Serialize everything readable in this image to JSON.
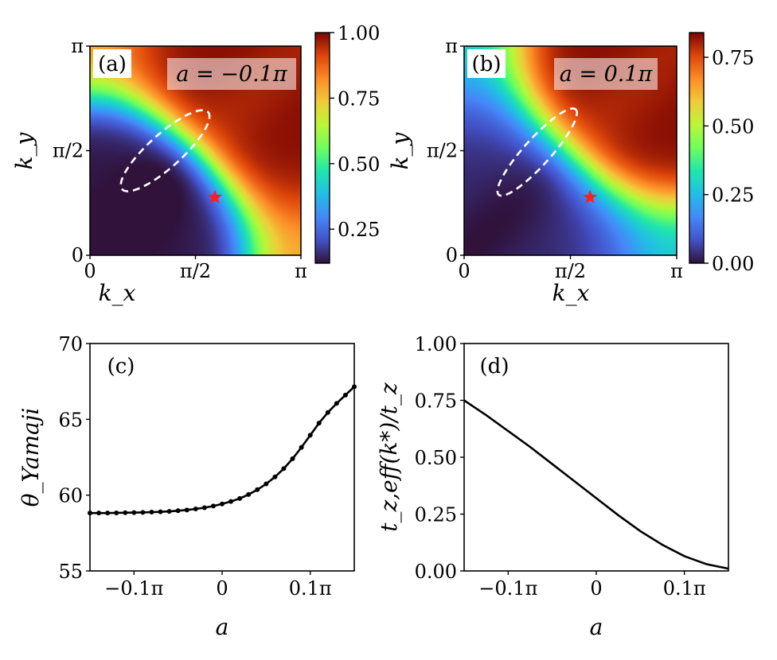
{
  "chart_data": [
    {
      "panel": "(a)",
      "type": "heatmap",
      "annotation": "a = −0.1π",
      "param_a": -0.1,
      "xlabel": "k_x",
      "ylabel": "k_y",
      "x_range": [
        0,
        3.14159
      ],
      "y_range": [
        0,
        3.14159
      ],
      "x_ticks": [
        {
          "value": 0,
          "label": "0"
        },
        {
          "value": 1.5708,
          "label": "π/2"
        },
        {
          "value": 3.14159,
          "label": "π"
        }
      ],
      "y_ticks": [
        {
          "value": 0,
          "label": "0"
        },
        {
          "value": 1.5708,
          "label": "π/2"
        },
        {
          "value": 3.14159,
          "label": "π"
        }
      ],
      "colorbar": {
        "min": 0.12,
        "max": 1.0,
        "ticks": [
          {
            "value": 0.25,
            "label": "0.25"
          },
          {
            "value": 0.5,
            "label": "0.50"
          },
          {
            "value": 0.75,
            "label": "0.75"
          },
          {
            "value": 1.0,
            "label": "1.00"
          }
        ]
      },
      "model": {
        "mu": 1.15,
        "base_low": 0.12,
        "base_high": 1.0,
        "spread": 0.22
      },
      "fermi_pocket": {
        "cx": 1.12,
        "cy": 1.57,
        "rx": 0.86,
        "ry": 0.25,
        "angle_deg": -42
      },
      "marker": {
        "kx": 1.86,
        "ky": 0.87
      }
    },
    {
      "panel": "(b)",
      "type": "heatmap",
      "annotation": "a = 0.1π",
      "param_a": 0.1,
      "xlabel": "k_x",
      "ylabel": "k_y",
      "x_range": [
        0,
        3.14159
      ],
      "y_range": [
        0,
        3.14159
      ],
      "x_ticks": [
        {
          "value": 0,
          "label": "0"
        },
        {
          "value": 1.5708,
          "label": "π/2"
        },
        {
          "value": 3.14159,
          "label": "π"
        }
      ],
      "y_ticks": [
        {
          "value": 0,
          "label": "0"
        },
        {
          "value": 1.5708,
          "label": "π/2"
        },
        {
          "value": 3.14159,
          "label": "π"
        }
      ],
      "colorbar": {
        "min": 0.0,
        "max": 0.84,
        "ticks": [
          {
            "value": 0.0,
            "label": "0.00"
          },
          {
            "value": 0.25,
            "label": "0.25"
          },
          {
            "value": 0.5,
            "label": "0.50"
          },
          {
            "value": 0.75,
            "label": "0.75"
          }
        ]
      },
      "model": {
        "mu": 1.2,
        "base_low": 0.02,
        "base_high": 0.84,
        "spread": 0.26
      },
      "fermi_pocket": {
        "cx": 1.08,
        "cy": 1.55,
        "rx": 0.85,
        "ry": 0.2,
        "angle_deg": -48
      },
      "marker": {
        "kx": 1.86,
        "ky": 0.87
      }
    },
    {
      "panel": "(c)",
      "type": "line",
      "xlabel": "a",
      "ylabel": "θ_Yamaji",
      "x_range": [
        -0.15,
        0.15
      ],
      "ylim": [
        55,
        70
      ],
      "x_ticks": [
        {
          "value": -0.1,
          "label": "−0.1π"
        },
        {
          "value": 0,
          "label": "0"
        },
        {
          "value": 0.1,
          "label": "0.1π"
        }
      ],
      "y_ticks": [
        {
          "value": 55,
          "label": "55"
        },
        {
          "value": 60,
          "label": "60"
        },
        {
          "value": 65,
          "label": "65"
        },
        {
          "value": 70,
          "label": "70"
        }
      ],
      "markers": true,
      "x": [
        -0.15,
        -0.14,
        -0.13,
        -0.12,
        -0.11,
        -0.1,
        -0.09,
        -0.08,
        -0.07,
        -0.06,
        -0.05,
        -0.04,
        -0.03,
        -0.02,
        -0.01,
        0.0,
        0.01,
        0.02,
        0.03,
        0.04,
        0.05,
        0.06,
        0.07,
        0.08,
        0.09,
        0.1,
        0.11,
        0.12,
        0.13,
        0.14,
        0.15
      ],
      "values": [
        58.82,
        58.82,
        58.82,
        58.83,
        58.84,
        58.85,
        58.86,
        58.88,
        58.9,
        58.93,
        58.97,
        59.02,
        59.09,
        59.17,
        59.28,
        59.42,
        59.58,
        59.78,
        60.04,
        60.36,
        60.74,
        61.2,
        61.75,
        62.4,
        63.15,
        63.95,
        64.75,
        65.45,
        66.05,
        66.6,
        67.15
      ]
    },
    {
      "panel": "(d)",
      "type": "line",
      "xlabel": "a",
      "ylabel": "t_z,eff(k*)/t_z",
      "x_range": [
        -0.15,
        0.15
      ],
      "ylim": [
        0,
        1
      ],
      "x_ticks": [
        {
          "value": -0.1,
          "label": "−0.1π"
        },
        {
          "value": 0,
          "label": "0"
        },
        {
          "value": 0.1,
          "label": "0.1π"
        }
      ],
      "y_ticks": [
        {
          "value": 0,
          "label": "0.00"
        },
        {
          "value": 0.25,
          "label": "0.25"
        },
        {
          "value": 0.5,
          "label": "0.50"
        },
        {
          "value": 0.75,
          "label": "0.75"
        },
        {
          "value": 1.0,
          "label": "1.00"
        }
      ],
      "markers": false,
      "x": [
        -0.15,
        -0.125,
        -0.1,
        -0.075,
        -0.05,
        -0.025,
        0.0,
        0.025,
        0.05,
        0.075,
        0.1,
        0.125,
        0.15
      ],
      "values": [
        0.75,
        0.685,
        0.615,
        0.545,
        0.47,
        0.395,
        0.32,
        0.245,
        0.175,
        0.115,
        0.065,
        0.03,
        0.01
      ]
    }
  ]
}
